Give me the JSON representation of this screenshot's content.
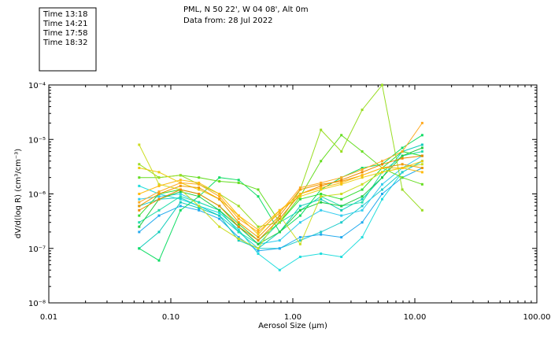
{
  "legend": [
    {
      "label": "Time 13:18",
      "color": "#22dddd"
    },
    {
      "label": "Time 14:21",
      "color": "#11dd66"
    },
    {
      "label": "Time 17:58",
      "color": "#ccdd22"
    },
    {
      "label": "Time 18:32",
      "color": "#ee9900"
    }
  ],
  "chart_data": {
    "type": "line",
    "title": "PML, N 50 22', W 04 08', Alt 0m",
    "subtitle": "Data from: 28 Jul 2022",
    "xlabel": "Aerosol Size (μm)",
    "ylabel": "dV/d(log R) (cm³/cm⁻³)",
    "xscale": "log",
    "yscale": "log",
    "xlim": [
      0.01,
      100
    ],
    "ylim": [
      1e-08,
      0.0001
    ],
    "xticks": [
      {
        "value": 0.01,
        "label": "0.01"
      },
      {
        "value": 0.1,
        "label": "0.10"
      },
      {
        "value": 1,
        "label": "1.00"
      },
      {
        "value": 10,
        "label": "10.00"
      },
      {
        "value": 100,
        "label": "100.00"
      }
    ],
    "yticks": [
      {
        "value": 1e-08,
        "label": "10⁻⁸"
      },
      {
        "value": 1e-07,
        "label": "10⁻⁷"
      },
      {
        "value": 1e-06,
        "label": "10⁻⁶"
      },
      {
        "value": 1e-05,
        "label": "10⁻⁵"
      },
      {
        "value": 0.0001,
        "label": "10⁻⁴"
      }
    ],
    "grid": false,
    "legend_position": "top-left, outside plot",
    "x": [
      0.055,
      0.08,
      0.12,
      0.17,
      0.25,
      0.36,
      0.52,
      0.78,
      1.15,
      1.7,
      2.5,
      3.7,
      5.4,
      7.9,
      11.5
    ],
    "series": [
      {
        "color": "#22dddd",
        "values": [
          1.4e-06,
          1e-06,
          8e-07,
          6e-07,
          4.5e-07,
          2.2e-07,
          8e-08,
          4e-08,
          7e-08,
          8e-08,
          7e-08,
          1.6e-07,
          8e-07,
          2.5e-06,
          4e-06
        ]
      },
      {
        "color": "#22cccc",
        "values": [
          6e-07,
          8e-07,
          8.5e-07,
          6e-07,
          4e-07,
          2e-07,
          1e-07,
          1e-07,
          1.4e-07,
          2e-07,
          3e-07,
          6e-07,
          1.2e-06,
          2.5e-06,
          4e-06
        ]
      },
      {
        "color": "#22aaee",
        "values": [
          2e-07,
          4e-07,
          6e-07,
          5e-07,
          3.5e-07,
          1.6e-07,
          9e-08,
          1e-07,
          1.6e-07,
          1.8e-07,
          1.6e-07,
          3e-07,
          1e-06,
          2e-06,
          3e-06
        ]
      },
      {
        "color": "#33ccee",
        "values": [
          8e-07,
          9e-07,
          1e-06,
          7e-07,
          5e-07,
          2.5e-07,
          1.2e-07,
          1.4e-07,
          3e-07,
          5e-07,
          4e-07,
          5e-07,
          1.5e-06,
          3e-06,
          5e-06
        ]
      },
      {
        "color": "#11ccbb",
        "values": [
          1e-07,
          2e-07,
          7e-07,
          5.5e-07,
          4e-07,
          1.4e-07,
          1e-07,
          2e-07,
          6e-07,
          8e-07,
          5e-07,
          8e-07,
          2e-06,
          6e-06,
          8e-06
        ]
      },
      {
        "color": "#22ddaa",
        "values": [
          3e-07,
          5e-07,
          9e-07,
          7e-07,
          5e-07,
          2e-07,
          1.2e-07,
          3e-07,
          5e-07,
          9e-07,
          6e-07,
          7e-07,
          2.5e-06,
          5e-06,
          6e-06
        ]
      },
      {
        "color": "#11dd66",
        "values": [
          1e-07,
          6e-08,
          5e-07,
          9e-07,
          2e-06,
          1.8e-06,
          9e-07,
          2e-07,
          4e-07,
          1.2e-06,
          2e-06,
          3e-06,
          3.5e-06,
          7e-06,
          1.2e-05
        ]
      },
      {
        "color": "#22cc44",
        "values": [
          2.5e-07,
          8e-07,
          1.1e-06,
          9e-07,
          5e-07,
          2.5e-07,
          1.2e-07,
          2e-07,
          5e-07,
          7e-07,
          6e-07,
          9e-07,
          2e-06,
          5e-06,
          7e-06
        ]
      },
      {
        "color": "#33dd33",
        "values": [
          4e-07,
          1e-06,
          1.2e-06,
          1e-06,
          6e-07,
          2.8e-07,
          1.4e-07,
          3e-07,
          8e-07,
          1e-06,
          8e-07,
          1.2e-06,
          3e-06,
          6e-06,
          5e-06
        ]
      },
      {
        "color": "#66dd22",
        "values": [
          2e-06,
          2e-06,
          2.2e-06,
          2e-06,
          1.7e-06,
          1.6e-06,
          1.2e-06,
          3e-07,
          9e-07,
          4e-06,
          1.2e-05,
          6e-06,
          3e-06,
          2e-06,
          1.5e-06
        ]
      },
      {
        "color": "#99dd22",
        "values": [
          3.5e-06,
          2e-06,
          2.2e-06,
          1.5e-06,
          1e-06,
          6e-07,
          2.5e-07,
          3e-07,
          1.2e-06,
          1.5e-05,
          6e-06,
          3.5e-05,
          0.0001,
          1.2e-06,
          5e-07
        ]
      },
      {
        "color": "#ccdd22",
        "values": [
          8e-06,
          1.5e-06,
          1.2e-06,
          6e-07,
          2.5e-07,
          1.5e-07,
          1e-07,
          4e-07,
          1.2e-07,
          9e-07,
          1e-06,
          1.5e-06,
          2.5e-06,
          3e-06,
          3.5e-06
        ]
      },
      {
        "color": "#eecc11",
        "values": [
          3e-06,
          2.5e-06,
          1.6e-06,
          1.2e-06,
          8e-07,
          4e-07,
          1.8e-07,
          5e-07,
          9e-07,
          1.2e-06,
          1.5e-06,
          2e-06,
          2.5e-06,
          3e-06,
          4e-06
        ]
      },
      {
        "color": "#ee9900",
        "values": [
          6e-07,
          1e-06,
          1.4e-06,
          1.3e-06,
          8e-07,
          3e-07,
          1.6e-07,
          4e-07,
          1.2e-06,
          1.5e-06,
          1.7e-06,
          2.2e-06,
          3e-06,
          3.5e-06,
          3e-06
        ]
      },
      {
        "color": "#ee8800",
        "values": [
          5e-07,
          8e-07,
          1.2e-06,
          1e-06,
          6e-07,
          2.5e-07,
          1.4e-07,
          3.5e-07,
          1e-06,
          1.4e-06,
          1.8e-06,
          2.5e-06,
          3.5e-06,
          4.5e-06,
          5e-06
        ]
      },
      {
        "color": "#ffaa22",
        "values": [
          7e-07,
          1.1e-06,
          1.6e-06,
          1.5e-06,
          9e-07,
          3.5e-07,
          2e-07,
          4.5e-07,
          1.3e-06,
          1.6e-06,
          2e-06,
          2.8e-06,
          4e-06,
          6e-06,
          2e-05
        ]
      },
      {
        "color": "#ffbb11",
        "values": [
          1e-06,
          1.4e-06,
          1.8e-06,
          1.6e-06,
          1e-06,
          4e-07,
          2.2e-07,
          5e-07,
          1e-06,
          1.3e-06,
          1.6e-06,
          2.2e-06,
          3e-06,
          3e-06,
          2.5e-06
        ]
      }
    ]
  }
}
